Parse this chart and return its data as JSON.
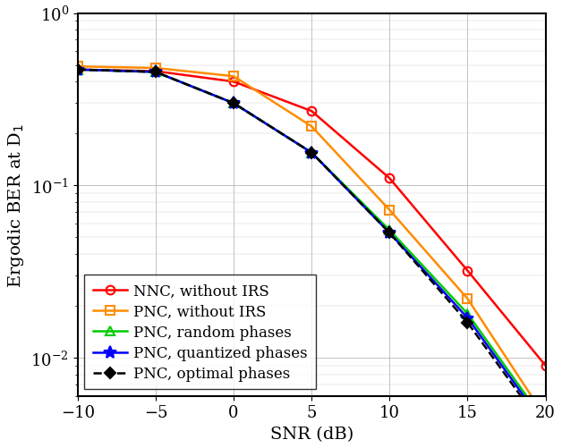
{
  "snr": [
    -10,
    -5,
    0,
    5,
    10,
    15,
    20
  ],
  "NNC_without_IRS": [
    0.47,
    0.46,
    0.4,
    0.27,
    0.11,
    0.032,
    0.009
  ],
  "PNC_without_IRS": [
    0.49,
    0.48,
    0.43,
    0.22,
    0.072,
    0.022,
    0.0045
  ],
  "PNC_random_phases": [
    0.47,
    0.455,
    0.3,
    0.155,
    0.055,
    0.018,
    0.0042
  ],
  "PNC_quantized_phases": [
    0.47,
    0.455,
    0.3,
    0.155,
    0.053,
    0.017,
    0.004
  ],
  "PNC_optimal_phases": [
    0.47,
    0.455,
    0.3,
    0.155,
    0.053,
    0.016,
    0.0038
  ],
  "colors": {
    "NNC_without_IRS": "#FF0000",
    "PNC_without_IRS": "#FF8C00",
    "PNC_random_phases": "#00CC00",
    "PNC_quantized_phases": "#0000FF",
    "PNC_optimal_phases": "#000000"
  },
  "markers": {
    "NNC_without_IRS": "o",
    "PNC_without_IRS": "s",
    "PNC_random_phases": "^",
    "PNC_quantized_phases": "*",
    "PNC_optimal_phases": "D"
  },
  "linestyles": {
    "NNC_without_IRS": "-",
    "PNC_without_IRS": "-",
    "PNC_random_phases": "-",
    "PNC_quantized_phases": "-",
    "PNC_optimal_phases": "--"
  },
  "labels": {
    "NNC_without_IRS": "NNC, without IRS",
    "PNC_without_IRS": "PNC, without IRS",
    "PNC_random_phases": "PNC, random phases",
    "PNC_quantized_phases": "PNC, quantized phases",
    "PNC_optimal_phases": "PNC, optimal phases"
  },
  "xlabel": "SNR (dB)",
  "ylabel": "Ergodic BER at D$_1$",
  "xlim": [
    -10,
    20
  ],
  "ylim": [
    0.006,
    1.0
  ],
  "xticks": [
    -10,
    -5,
    0,
    5,
    10,
    15,
    20
  ],
  "title": ""
}
